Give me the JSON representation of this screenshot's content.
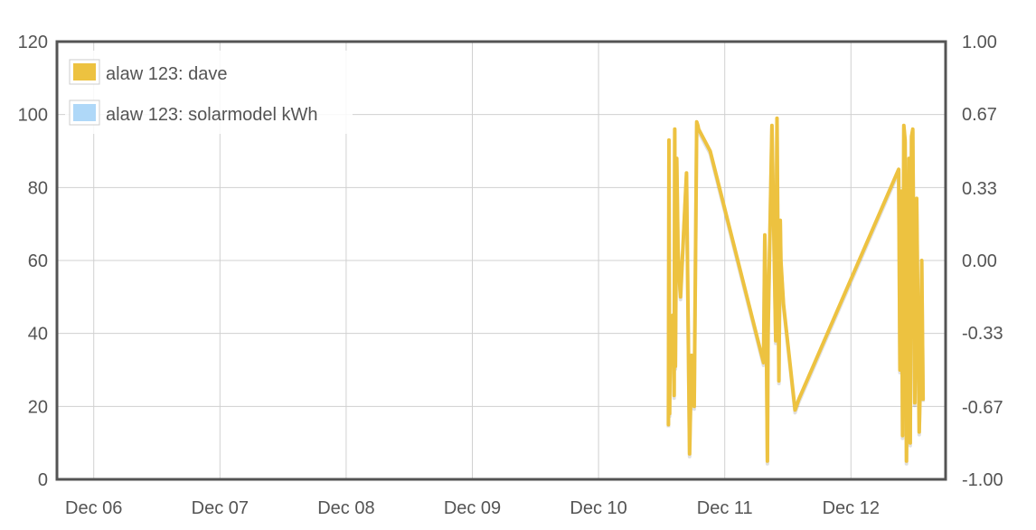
{
  "chart_data": {
    "type": "line",
    "title": "",
    "xlabel": "",
    "ylabel": "",
    "x_ticks": [
      "Dec 06",
      "Dec 07",
      "Dec 08",
      "Dec 09",
      "Dec 10",
      "Dec 11",
      "Dec 12"
    ],
    "xlim": [
      "Dec 05 17:00",
      "Dec 12 18:00"
    ],
    "ylim": [
      0,
      120
    ],
    "y_ticks": [
      "0",
      "20",
      "40",
      "60",
      "80",
      "100",
      "120"
    ],
    "y2lim": [
      -1.0,
      1.0
    ],
    "y2_ticks": [
      "-1.00",
      "-0.67",
      "-0.33",
      "0.00",
      "0.33",
      "0.67",
      "1.00"
    ],
    "grid": true,
    "legend_position": "top-left",
    "colors": {
      "dave": "#edc240",
      "solarmodel": "#afd8f8",
      "grid": "#d0d0d0",
      "frame": "#545454"
    },
    "series": [
      {
        "name": "alaw 123: dave",
        "axis": "left",
        "x": [
          "Dec 10 13:17",
          "Dec 10 13:24",
          "Dec 10 13:31",
          "Dec 10 13:38",
          "Dec 10 13:53",
          "Dec 10 14:08",
          "Dec 10 14:22",
          "Dec 10 14:30",
          "Dec 10 14:37",
          "Dec 10 14:52",
          "Dec 10 15:07",
          "Dec 10 15:22",
          "Dec 10 15:36",
          "Dec 10 16:44",
          "Dec 10 17:19",
          "Dec 10 17:41",
          "Dec 10 18:11",
          "Dec 10 18:40",
          "Dec 10 18:54",
          "Dec 10 19:02",
          "Dec 10 21:14",
          "Dec 11 07:23",
          "Dec 11 07:37",
          "Dec 11 07:52",
          "Dec 11 08:07",
          "Dec 11 08:14",
          "Dec 11 08:58",
          "Dec 11 09:42",
          "Dec 11 09:56",
          "Dec 11 10:18",
          "Dec 11 10:33",
          "Dec 11 10:41",
          "Dec 11 11:10",
          "Dec 11 13:22",
          "Dec 11 14:06",
          "Dec 12 09:05",
          "Dec 12 09:19",
          "Dec 12 09:34",
          "Dec 12 09:49",
          "Dec 12 10:03",
          "Dec 12 10:18",
          "Dec 12 10:33",
          "Dec 12 10:47",
          "Dec 12 11:02",
          "Dec 12 11:17",
          "Dec 12 11:31",
          "Dec 12 11:46",
          "Dec 12 12:08",
          "Dec 12 12:30",
          "Dec 12 12:59",
          "Dec 12 13:14",
          "Dec 12 13:28",
          "Dec 12 13:43"
        ],
        "values": [
          15,
          93,
          18,
          38,
          32,
          45,
          23,
          96,
          31,
          88,
          63,
          55,
          50,
          84,
          7,
          34,
          20,
          98,
          97,
          96,
          90,
          32,
          67,
          46,
          5,
          40,
          97,
          38,
          99,
          27,
          71,
          60,
          48,
          19,
          22,
          85,
          30,
          79,
          12,
          97,
          93,
          5,
          40,
          88,
          10,
          94,
          96,
          21,
          77,
          13,
          30,
          60,
          22
        ]
      },
      {
        "name": "alaw 123: solarmodel kWh",
        "axis": "right",
        "x": [],
        "values": []
      }
    ]
  }
}
